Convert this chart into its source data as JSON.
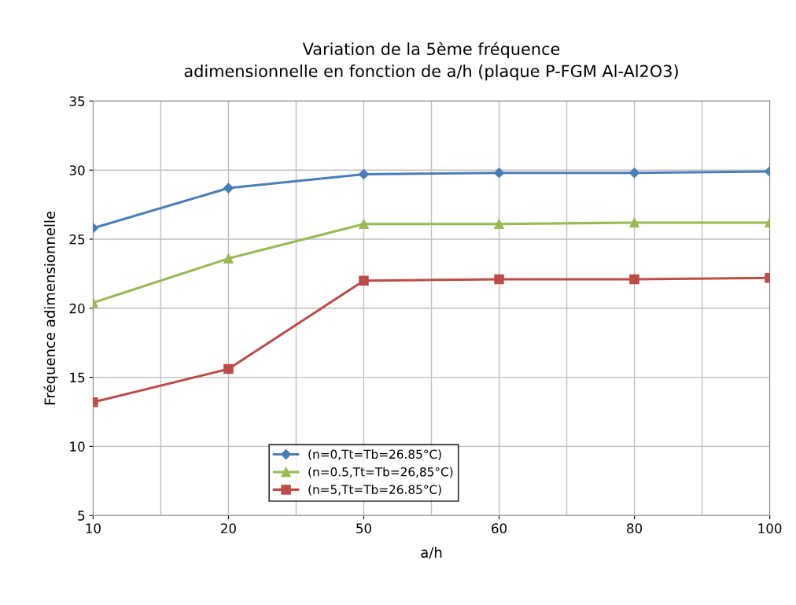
{
  "chart_data": {
    "type": "line",
    "title": "Variation de la 5ème fréquence\nadimensionnelle en fonction de a/h (plaque P-FGM Al-Al2O3)",
    "xlabel": "a/h",
    "ylabel": "Fréquence adimensionnelle",
    "categories": [
      "10",
      "20",
      "50",
      "60",
      "80",
      "100"
    ],
    "series": [
      {
        "name": "(n=0,Tt=Tb=26.85°C)",
        "color": "#4a7ebb",
        "marker": "diamond",
        "values": [
          25.8,
          28.7,
          29.7,
          29.8,
          29.8,
          29.9
        ]
      },
      {
        "name": "(n=0.5,Tt=Tb=26,85°C)",
        "color": "#98b954",
        "marker": "triangle",
        "values": [
          20.4,
          23.6,
          26.1,
          26.1,
          26.2,
          26.2
        ]
      },
      {
        "name": "(n=5,Tt=Tb=26.85°C)",
        "color": "#be4b48",
        "marker": "square",
        "values": [
          13.2,
          15.6,
          22.0,
          22.1,
          22.1,
          22.2
        ]
      }
    ],
    "ylim": [
      5,
      35
    ],
    "yticks": [
      5,
      10,
      15,
      20,
      25,
      30,
      35
    ],
    "grid": true,
    "legend": "bottom",
    "line_style": "solid"
  }
}
